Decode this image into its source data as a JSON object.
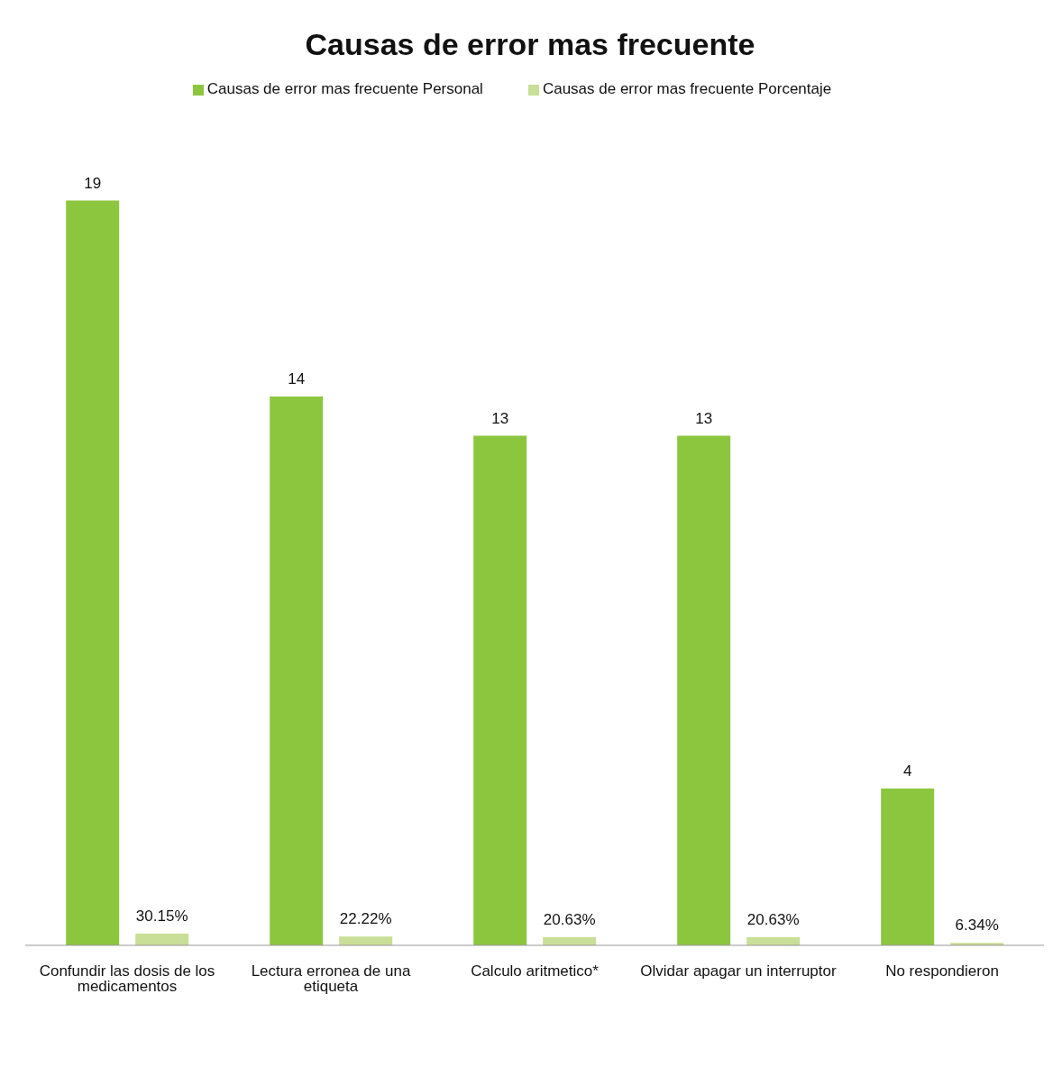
{
  "chart_data": {
    "type": "bar",
    "title": "Causas de error mas frecuente",
    "categories": [
      "Confundir las dosis de los medicamentos",
      "Lectura erronea de una etiqueta",
      "Calculo aritmetico*",
      "Olvidar apagar un interruptor",
      "No respondieron"
    ],
    "series": [
      {
        "name": "Causas de error mas frecuente Personal",
        "color": "#8cc63e",
        "values": [
          19,
          14,
          13,
          13,
          4
        ],
        "value_labels": [
          "19",
          "14",
          "13",
          "13",
          "4"
        ]
      },
      {
        "name": "Causas de error mas frecuente Porcentaje",
        "color": "#c9de96",
        "values": [
          0.3015,
          0.2222,
          0.2063,
          0.2063,
          0.0634
        ],
        "value_labels": [
          "30.15%",
          "22.22%",
          "20.63%",
          "20.63%",
          "6.34%"
        ]
      }
    ],
    "legend": "top",
    "grid": false,
    "tick_labels": "x"
  }
}
